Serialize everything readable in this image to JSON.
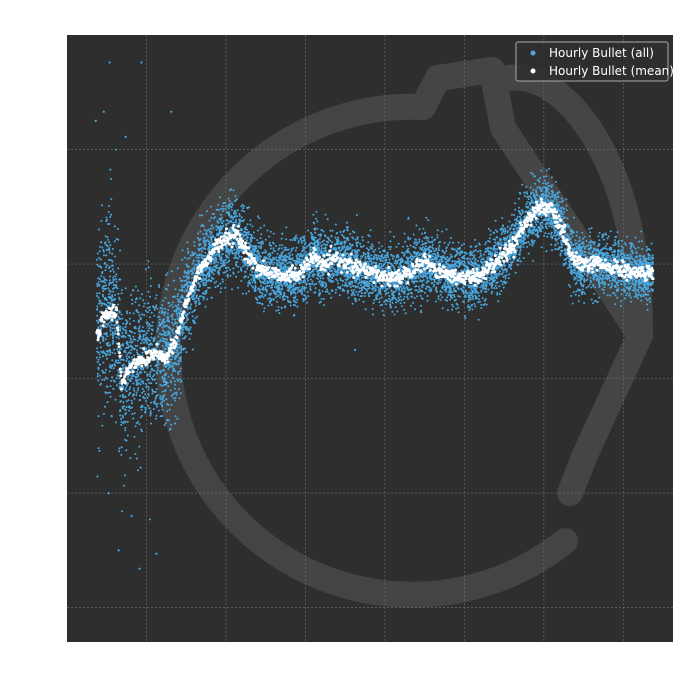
{
  "chart_data": {
    "type": "scatter",
    "title": "",
    "xlabel": "",
    "ylabel": "",
    "grid": true,
    "legend_position": "top-right",
    "background": "#2e2e2e",
    "xlim": [
      -1,
      60
    ],
    "ylim": [
      -33,
      20
    ],
    "x_ticks": [
      7,
      15,
      23,
      31,
      39,
      47,
      55
    ],
    "y_ticks": [
      -30,
      -20,
      -10,
      0,
      10
    ],
    "series": [
      {
        "name": "Hourly Bullet (all)",
        "color": "#4aa8e0",
        "marker_size": 1.0,
        "mean_track": [
          [
            2,
            -6.2
          ],
          [
            3,
            -4.2
          ],
          [
            4,
            -4.4
          ],
          [
            4.5,
            -10.5
          ],
          [
            5,
            -9.5
          ],
          [
            6,
            -8.5
          ],
          [
            7,
            -8.2
          ],
          [
            8,
            -7.6
          ],
          [
            9,
            -8.3
          ],
          [
            10,
            -6.6
          ],
          [
            11,
            -3.4
          ],
          [
            12,
            -1.1
          ],
          [
            13,
            0.3
          ],
          [
            14,
            1.5
          ],
          [
            15,
            2.2
          ],
          [
            16,
            2.6
          ],
          [
            17,
            1.2
          ],
          [
            18,
            -0.2
          ],
          [
            19,
            -0.6
          ],
          [
            20,
            -0.9
          ],
          [
            22,
            -1.0
          ],
          [
            23,
            -0.2
          ],
          [
            24,
            0.6
          ],
          [
            25,
            -0.2
          ],
          [
            26,
            0.5
          ],
          [
            28,
            -0.3
          ],
          [
            30,
            -0.9
          ],
          [
            32,
            -1.3
          ],
          [
            34,
            -0.3
          ],
          [
            35,
            0.3
          ],
          [
            36,
            -0.4
          ],
          [
            38,
            -1.1
          ],
          [
            40,
            -1.2
          ],
          [
            42,
            0.0
          ],
          [
            44,
            1.8
          ],
          [
            45,
            3.4
          ],
          [
            46,
            4.6
          ],
          [
            47,
            5.1
          ],
          [
            48,
            4.4
          ],
          [
            49,
            2.5
          ],
          [
            50,
            0.3
          ],
          [
            51,
            -0.1
          ],
          [
            52,
            0.0
          ],
          [
            54,
            -0.3
          ],
          [
            56,
            -0.8
          ],
          [
            58,
            -0.8
          ]
        ],
        "spread": [
          [
            2,
            10
          ],
          [
            3,
            10
          ],
          [
            4,
            10
          ],
          [
            4.5,
            9
          ],
          [
            5,
            8
          ],
          [
            7,
            7
          ],
          [
            9,
            7
          ],
          [
            10,
            6
          ],
          [
            11,
            5
          ],
          [
            13,
            4
          ],
          [
            15,
            3.8
          ],
          [
            20,
            3.2
          ],
          [
            30,
            3
          ],
          [
            40,
            3
          ],
          [
            45,
            3
          ],
          [
            47,
            3
          ],
          [
            50,
            2.8
          ],
          [
            58,
            2.6
          ]
        ],
        "outliers": [
          [
            3.3,
            17.6
          ],
          [
            6.5,
            17.6
          ],
          [
            2.7,
            13.3
          ],
          [
            4.9,
            11.1
          ],
          [
            1.9,
            12.5
          ],
          [
            9.5,
            13.3
          ],
          [
            14,
            0.5
          ],
          [
            28,
            -7.5
          ],
          [
            4.2,
            -25.0
          ],
          [
            6.3,
            -26.6
          ],
          [
            8.0,
            -25.3
          ],
          [
            4.5,
            -16.0
          ],
          [
            3.2,
            -20.0
          ],
          [
            5.5,
            -22.0
          ]
        ]
      },
      {
        "name": "Hourly Bullet (mean)",
        "color": "#ffffff"
      }
    ]
  }
}
